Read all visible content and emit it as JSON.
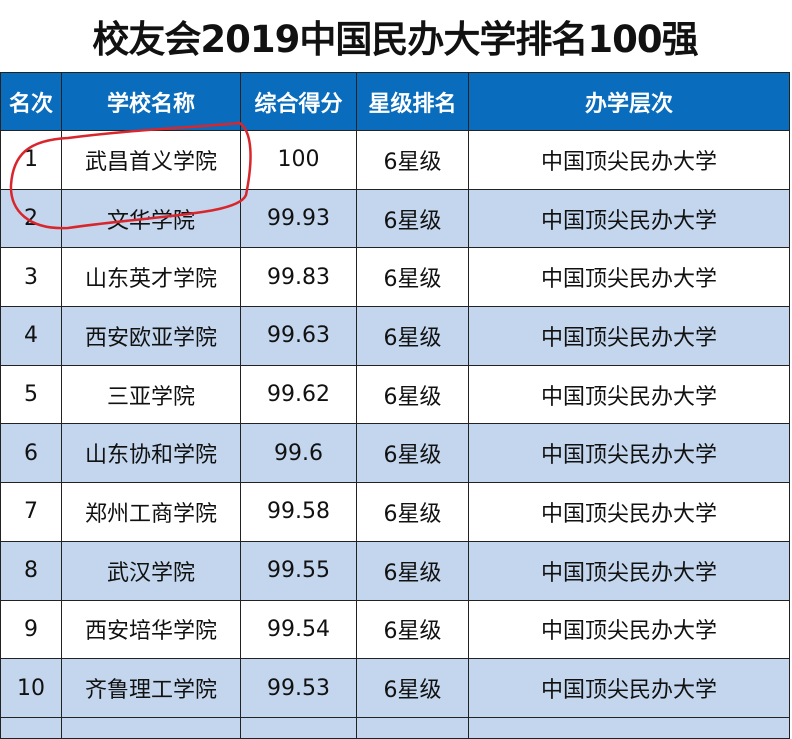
{
  "title": "校友会2019中国民办大学排名100强",
  "columns": [
    "名次",
    "学校名称",
    "综合得分",
    "星级排名",
    "办学层次"
  ],
  "rows": [
    {
      "rank": "1",
      "name": "武昌首义学院",
      "score": "100",
      "star": "6星级",
      "level": "中国顶尖民办大学"
    },
    {
      "rank": "2",
      "name": "文华学院",
      "score": "99.93",
      "star": "6星级",
      "level": "中国顶尖民办大学"
    },
    {
      "rank": "3",
      "name": "山东英才学院",
      "score": "99.83",
      "star": "6星级",
      "level": "中国顶尖民办大学"
    },
    {
      "rank": "4",
      "name": "西安欧亚学院",
      "score": "99.63",
      "star": "6星级",
      "level": "中国顶尖民办大学"
    },
    {
      "rank": "5",
      "name": "三亚学院",
      "score": "99.62",
      "star": "6星级",
      "level": "中国顶尖民办大学"
    },
    {
      "rank": "6",
      "name": "山东协和学院",
      "score": "99.6",
      "star": "6星级",
      "level": "中国顶尖民办大学"
    },
    {
      "rank": "7",
      "name": "郑州工商学院",
      "score": "99.58",
      "star": "6星级",
      "level": "中国顶尖民办大学"
    },
    {
      "rank": "8",
      "name": "武汉学院",
      "score": "99.55",
      "star": "6星级",
      "level": "中国顶尖民办大学"
    },
    {
      "rank": "9",
      "name": "西安培华学院",
      "score": "99.54",
      "star": "6星级",
      "level": "中国顶尖民办大学"
    },
    {
      "rank": "10",
      "name": "齐鲁理工学院",
      "score": "99.53",
      "star": "6星级",
      "level": "中国顶尖民办大学"
    }
  ],
  "annotation": {
    "type": "hand-drawn-circle",
    "color": "#d9262c",
    "target_row": "1"
  }
}
